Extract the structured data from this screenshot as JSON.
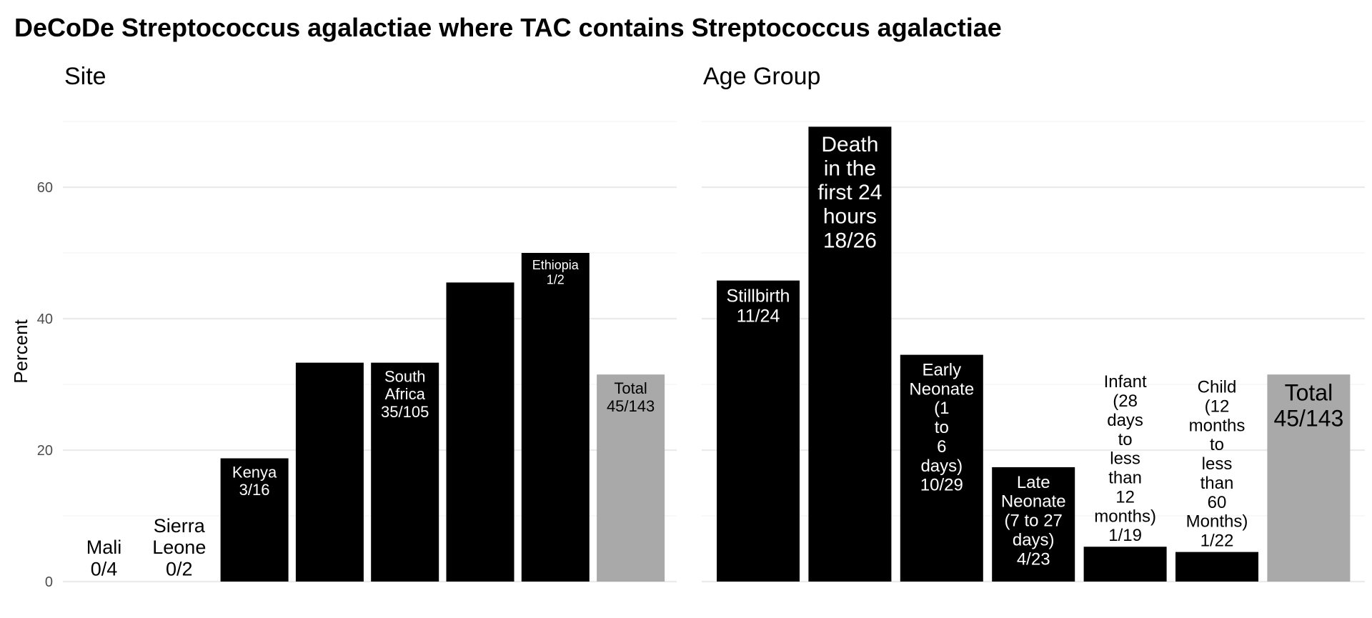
{
  "title": "DeCoDe Streptococcus agalactiae where TAC contains Streptococcus agalactiae",
  "chart_data": {
    "type": "bar",
    "ylabel": "Percent",
    "ylim": [
      0,
      70
    ],
    "yticks": [
      0,
      20,
      40,
      60
    ],
    "grid": true,
    "panels": [
      {
        "title": "Site",
        "bars": [
          {
            "label": "Mali\n0/4",
            "value": 0,
            "color": "#000000"
          },
          {
            "label": "Sierra\nLeone\n0/2",
            "value": 0,
            "color": "#000000"
          },
          {
            "label": "Kenya\n3/16",
            "value": 18.75,
            "color": "#000000"
          },
          {
            "label": "",
            "value": 33.3,
            "color": "#000000"
          },
          {
            "label": "South\nAfrica\n35/105",
            "value": 33.3,
            "color": "#000000"
          },
          {
            "label": "",
            "value": 45.5,
            "color": "#000000"
          },
          {
            "label": "Ethiopia\n1/2",
            "value": 50,
            "color": "#000000"
          },
          {
            "label": "Total\n45/143",
            "value": 31.5,
            "color": "#a9a9a9"
          }
        ]
      },
      {
        "title": "Age Group",
        "bars": [
          {
            "label": "Stillbirth\n11/24",
            "value": 45.8,
            "color": "#000000"
          },
          {
            "label": "Death\nin the\nfirst 24\nhours\n18/26",
            "value": 69.2,
            "color": "#000000"
          },
          {
            "label": "Early\nNeonate\n(1\nto\n6\ndays)\n10/29",
            "value": 34.5,
            "color": "#000000"
          },
          {
            "label": "Late\nNeonate\n(7 to 27\ndays)\n4/23",
            "value": 17.4,
            "color": "#000000"
          },
          {
            "label": "Infant\n(28\ndays\nto\nless\nthan\n12\nmonths)\n1/19",
            "value": 5.3,
            "color": "#000000"
          },
          {
            "label": "Child\n(12\nmonths\nto\nless\nthan\n60\nMonths)\n1/22",
            "value": 4.5,
            "color": "#000000"
          },
          {
            "label": "Total\n45/143",
            "value": 31.5,
            "color": "#a9a9a9"
          }
        ]
      }
    ]
  }
}
